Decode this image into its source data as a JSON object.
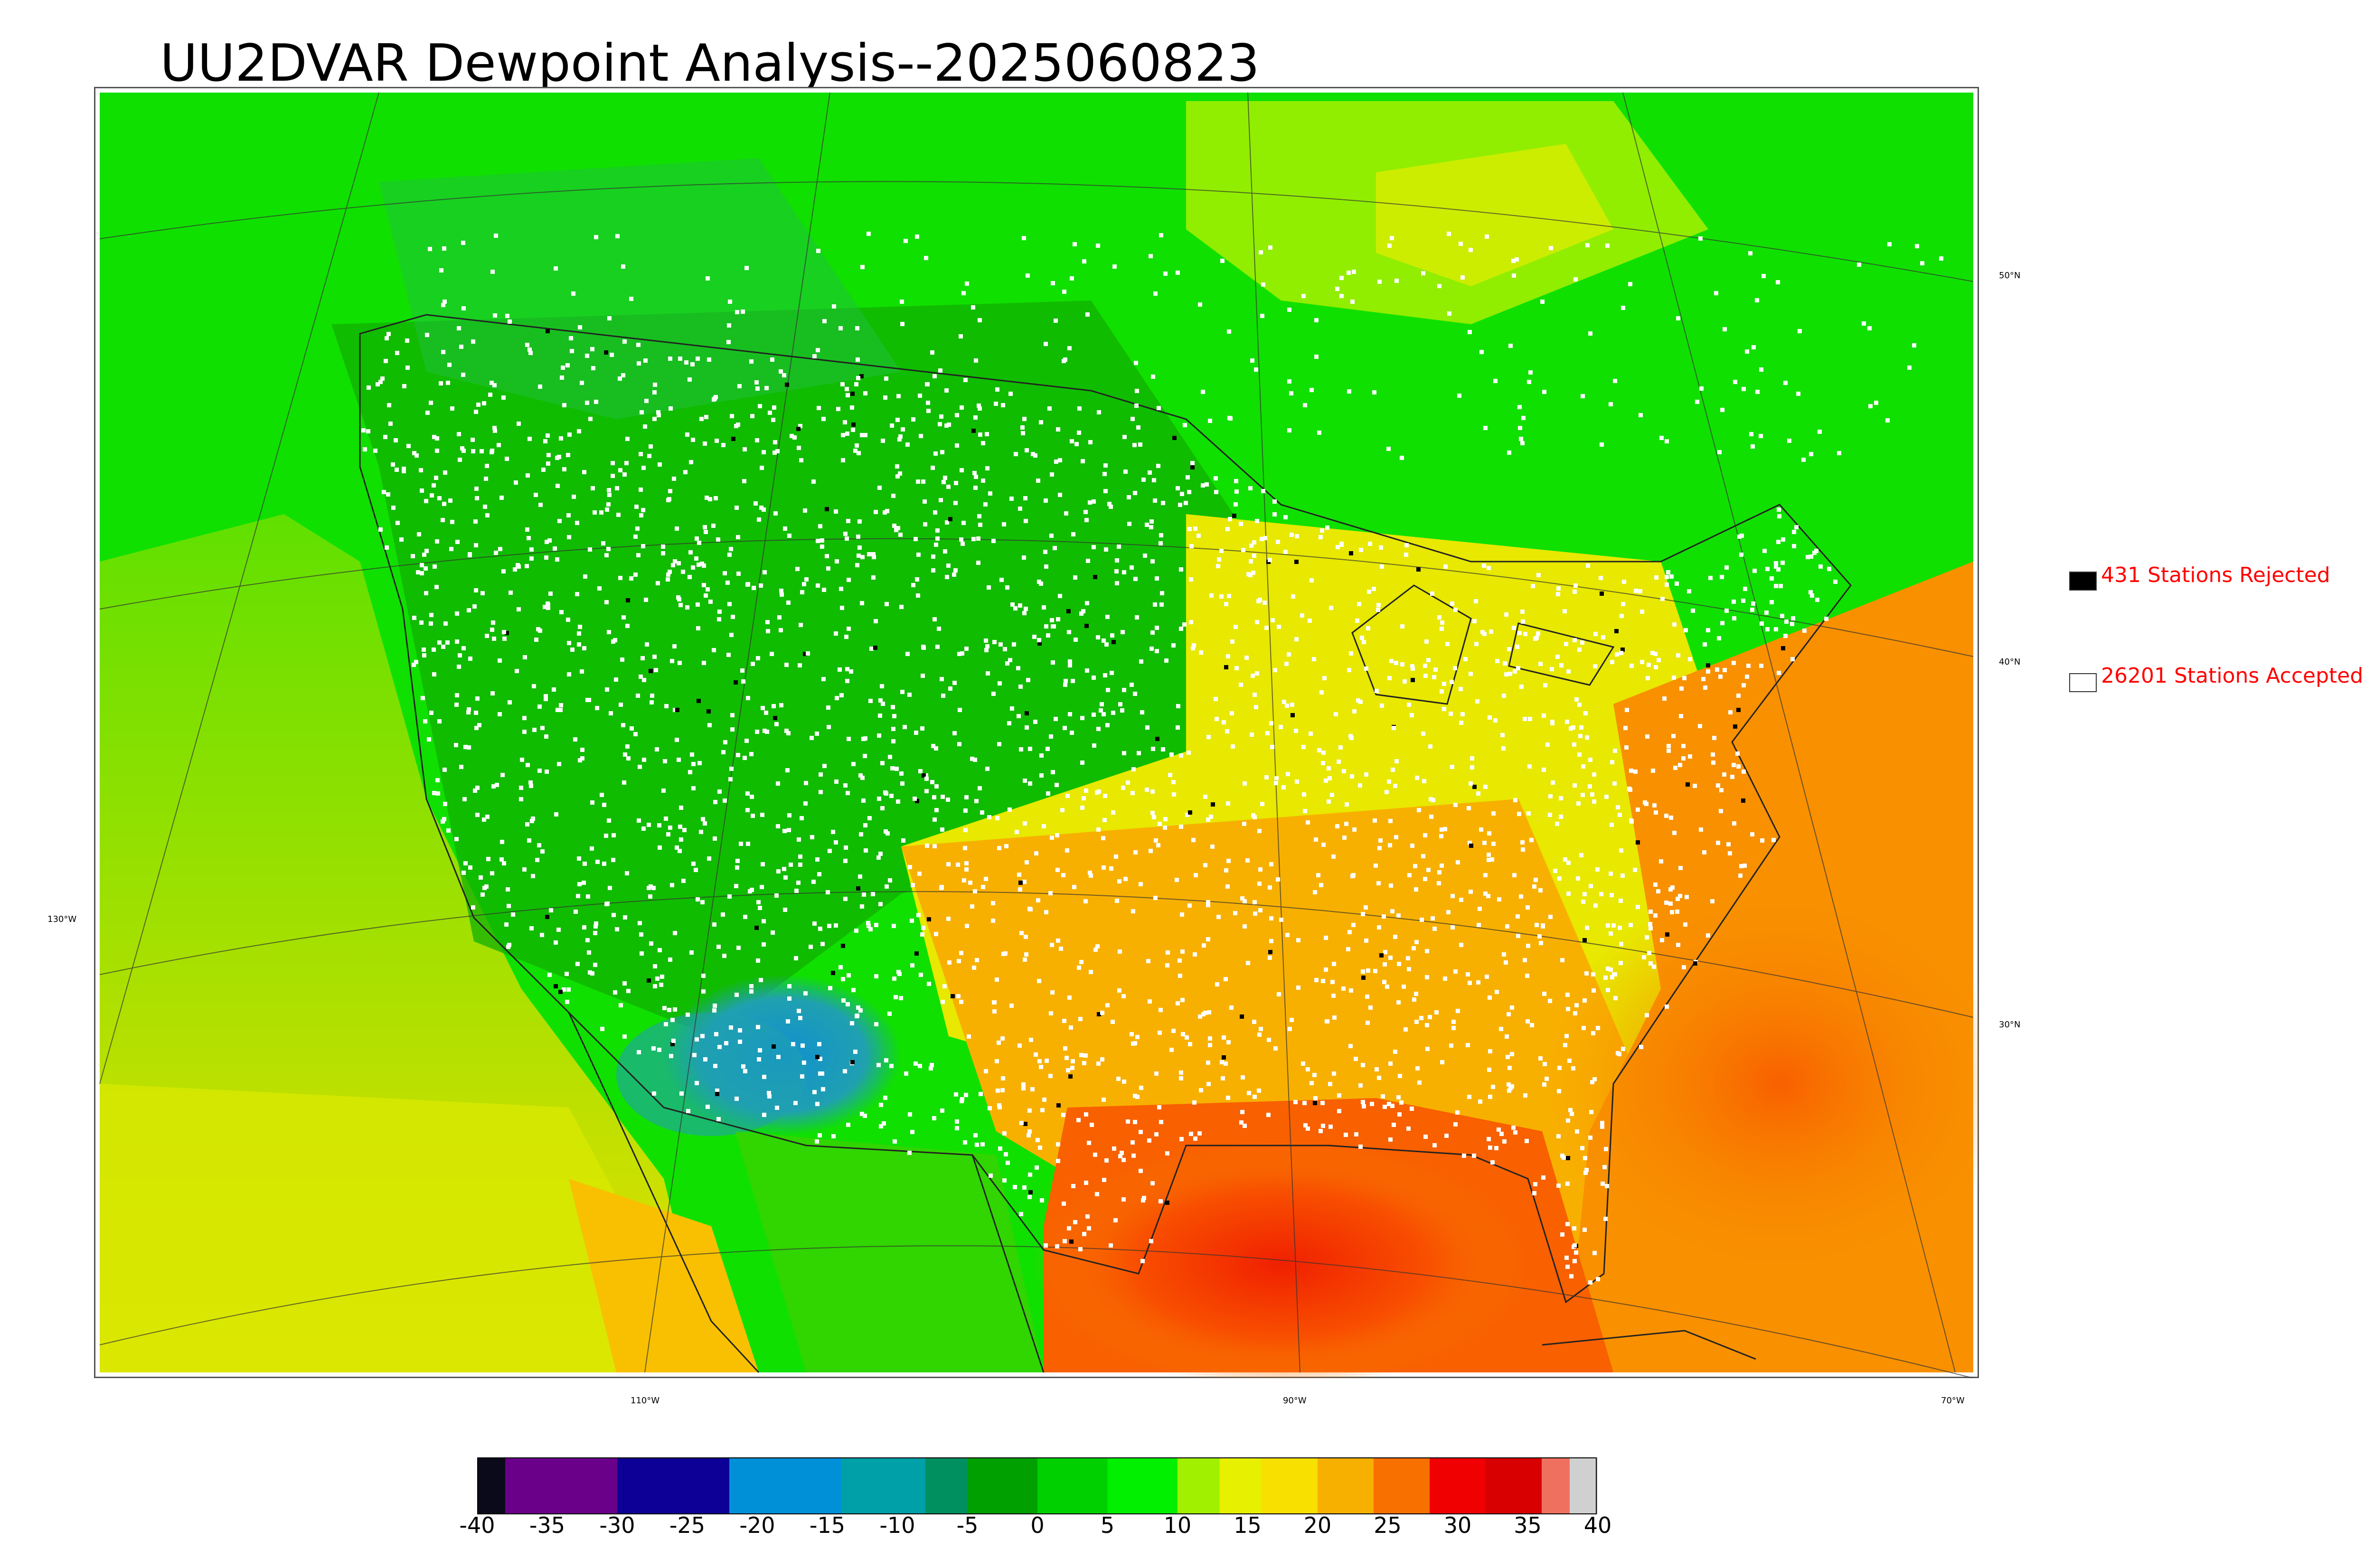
{
  "title": "UU2DVAR Dewpoint Analysis--2025060823",
  "graticule": {
    "lat_labels": [
      "50°N",
      "40°N",
      "30°N"
    ],
    "lon_labels": [
      "130°W",
      "110°W",
      "90°W",
      "70°W"
    ]
  },
  "legend": {
    "rejected_label": "431 Stations Rejected",
    "accepted_label": "26201 Stations Accepted",
    "rejected_color": "#000000",
    "accepted_color": "#ffffff"
  },
  "colorbar": {
    "ticks": [
      "-40",
      "-35",
      "-30",
      "-25",
      "-20",
      "-15",
      "-10",
      "-5",
      "0",
      "5",
      "10",
      "15",
      "20",
      "25",
      "30",
      "35",
      "40"
    ],
    "segments": [
      {
        "from": -40,
        "to": -38,
        "color": "#0a0a1a"
      },
      {
        "from": -38,
        "to": -30,
        "color": "#6a008a"
      },
      {
        "from": -30,
        "to": -22,
        "color": "#0c0096"
      },
      {
        "from": -22,
        "to": -14,
        "color": "#0090d8"
      },
      {
        "from": -14,
        "to": -8,
        "color": "#00a0a8"
      },
      {
        "from": -8,
        "to": -5,
        "color": "#009060"
      },
      {
        "from": -5,
        "to": 0,
        "color": "#00a000"
      },
      {
        "from": 0,
        "to": 5,
        "color": "#00d000"
      },
      {
        "from": 5,
        "to": 10,
        "color": "#00f000"
      },
      {
        "from": 10,
        "to": 13,
        "color": "#a0f000"
      },
      {
        "from": 13,
        "to": 16,
        "color": "#e6f000"
      },
      {
        "from": 16,
        "to": 20,
        "color": "#f8e000"
      },
      {
        "from": 20,
        "to": 24,
        "color": "#f8b000"
      },
      {
        "from": 24,
        "to": 28,
        "color": "#f87000"
      },
      {
        "from": 28,
        "to": 32,
        "color": "#f00000"
      },
      {
        "from": 32,
        "to": 36,
        "color": "#d80000"
      },
      {
        "from": 36,
        "to": 38,
        "color": "#f07060"
      },
      {
        "from": 38,
        "to": 40,
        "color": "#d0d0d0"
      }
    ]
  }
}
